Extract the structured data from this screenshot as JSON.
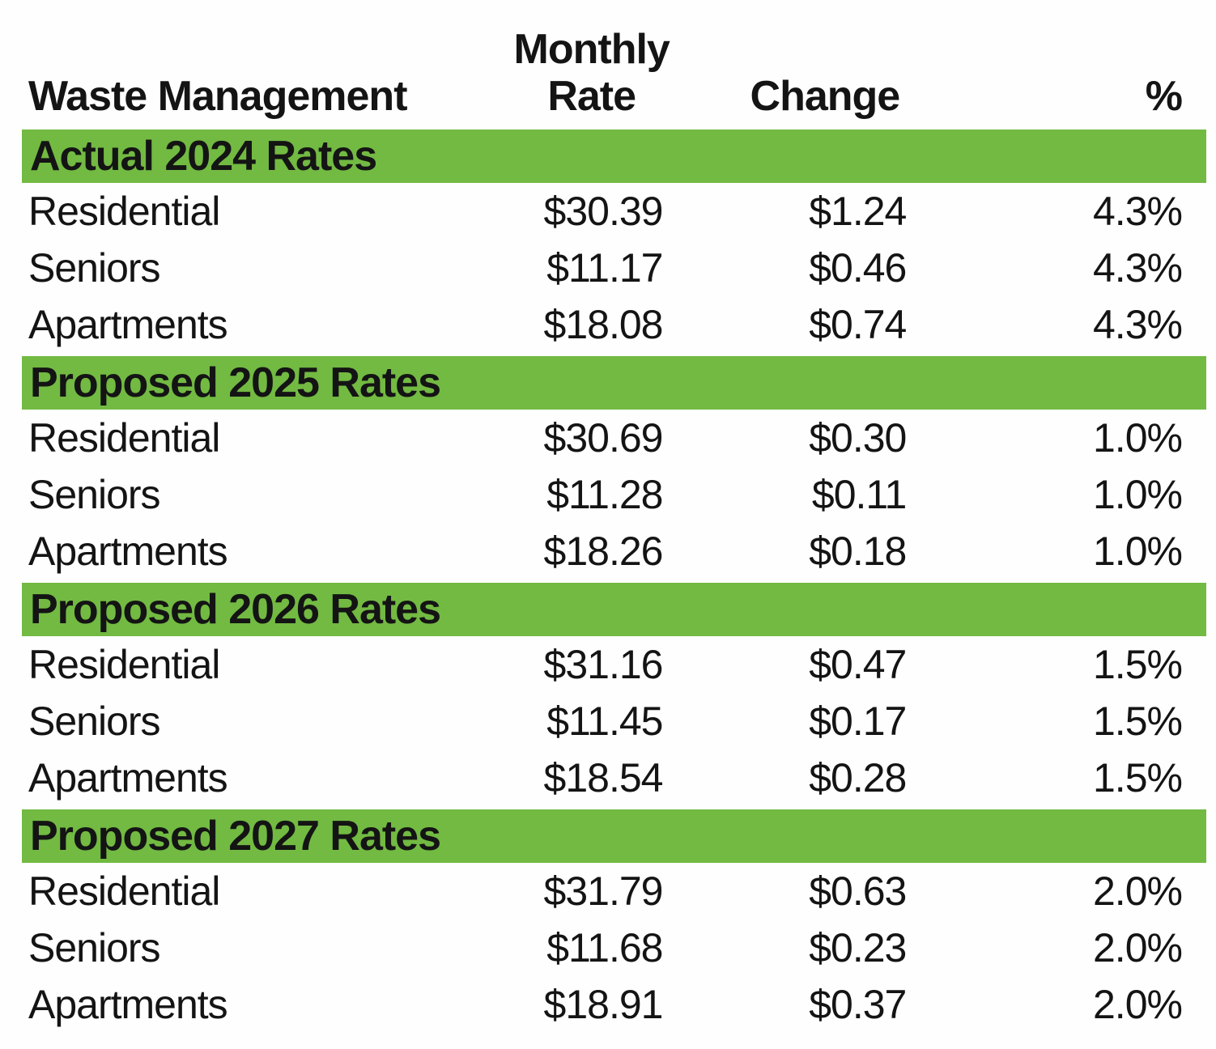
{
  "table": {
    "accent_green": "#72BA42",
    "header": {
      "entity": "Waste Management",
      "monthly": "Monthly",
      "rate": "Rate",
      "change": "Change",
      "percent": "%"
    },
    "sections": [
      {
        "header": "Actual 2024 Rates",
        "rows": [
          {
            "label": "Residential",
            "rate": "$30.39",
            "change": "$1.24",
            "percent": "4.3%"
          },
          {
            "label": "Seniors",
            "rate": "$11.17",
            "change": "$0.46",
            "percent": "4.3%"
          },
          {
            "label": "Apartments",
            "rate": "$18.08",
            "change": "$0.74",
            "percent": "4.3%"
          }
        ]
      },
      {
        "header": "Proposed 2025 Rates",
        "rows": [
          {
            "label": "Residential",
            "rate": "$30.69",
            "change": "$0.30",
            "percent": "1.0%"
          },
          {
            "label": "Seniors",
            "rate": "$11.28",
            "change": "$0.11",
            "percent": "1.0%"
          },
          {
            "label": "Apartments",
            "rate": "$18.26",
            "change": "$0.18",
            "percent": "1.0%"
          }
        ]
      },
      {
        "header": "Proposed 2026 Rates",
        "rows": [
          {
            "label": "Residential",
            "rate": "$31.16",
            "change": "$0.47",
            "percent": "1.5%"
          },
          {
            "label": "Seniors",
            "rate": "$11.45",
            "change": "$0.17",
            "percent": "1.5%"
          },
          {
            "label": "Apartments",
            "rate": "$18.54",
            "change": "$0.28",
            "percent": "1.5%"
          }
        ]
      },
      {
        "header": "Proposed 2027 Rates",
        "rows": [
          {
            "label": "Residential",
            "rate": "$31.79",
            "change": "$0.63",
            "percent": "2.0%"
          },
          {
            "label": "Seniors",
            "rate": "$11.68",
            "change": "$0.23",
            "percent": "2.0%"
          },
          {
            "label": "Apartments",
            "rate": "$18.91",
            "change": "$0.37",
            "percent": "2.0%"
          }
        ]
      }
    ]
  }
}
